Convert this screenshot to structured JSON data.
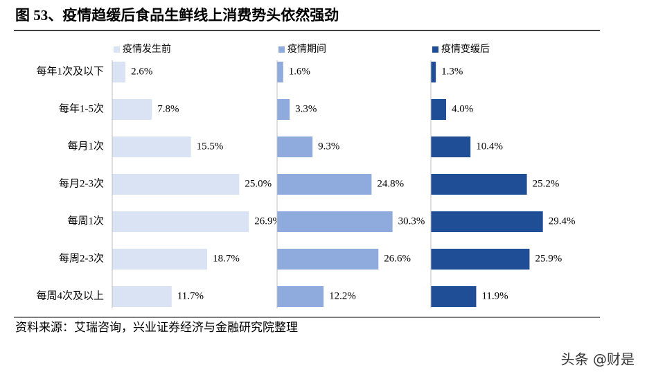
{
  "chart_data": {
    "type": "bar",
    "orientation": "horizontal",
    "title": "图 53、疫情趋缓后食品生鲜线上消费势头依然强劲",
    "source": "资料来源：艾瑞咨询，兴业证券经济与金融研究院整理",
    "categories": [
      "每年1次及以下",
      "每年1-5次",
      "每月1次",
      "每月2-3次",
      "每周1次",
      "每周2-3次",
      "每周4次及以上"
    ],
    "series": [
      {
        "name": "疫情发生前",
        "color": "#dae3f3",
        "xlim": [
          0,
          30
        ],
        "values": [
          2.6,
          7.8,
          15.5,
          25.0,
          26.9,
          18.7,
          11.7
        ],
        "value_labels": [
          "2.6%",
          "7.8%",
          "15.5%",
          "25.0%",
          "26.9%",
          "18.7%",
          "11.7%"
        ]
      },
      {
        "name": "疫情期间",
        "color": "#8faadc",
        "xlim": [
          0,
          40
        ],
        "values": [
          1.6,
          3.3,
          9.3,
          24.8,
          30.3,
          26.6,
          12.2
        ],
        "value_labels": [
          "1.6%",
          "3.3%",
          "9.3%",
          "24.8%",
          "30.3%",
          "26.6%",
          "12.2%"
        ]
      },
      {
        "name": "疫情变缓后",
        "color": "#1f4e96",
        "xlim": [
          0,
          40
        ],
        "values": [
          1.3,
          4.0,
          10.4,
          25.2,
          29.4,
          25.9,
          11.9
        ],
        "value_labels": [
          "1.3%",
          "4.0%",
          "10.4%",
          "25.2%",
          "29.4%",
          "25.9%",
          "11.9%"
        ]
      }
    ]
  },
  "watermark": "头条 @财是"
}
